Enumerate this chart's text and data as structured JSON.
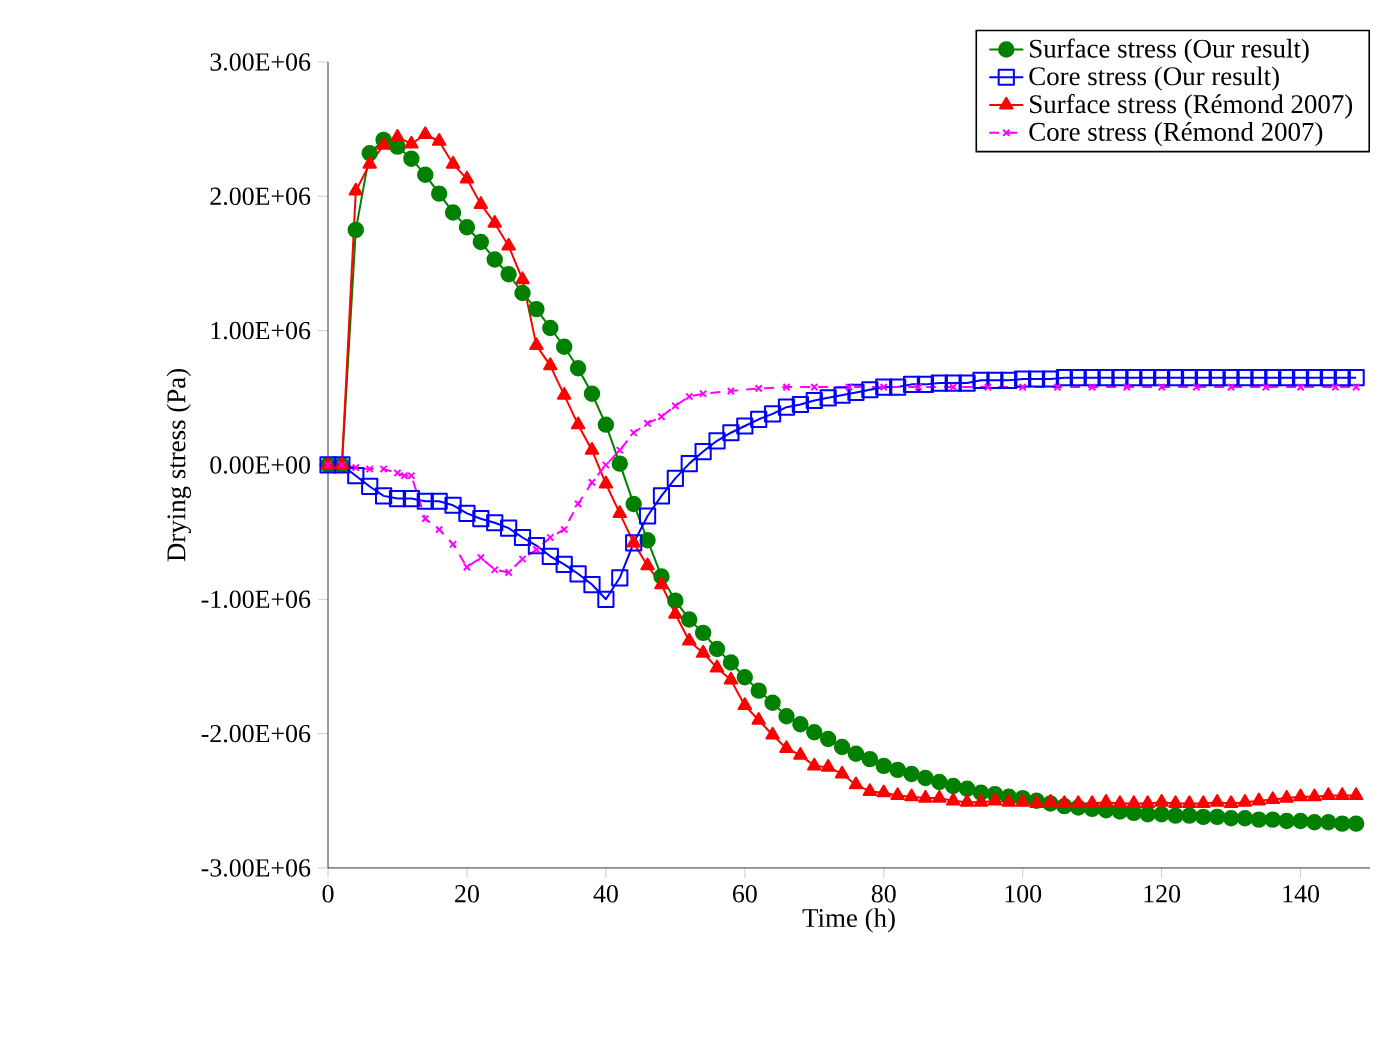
{
  "chart_data": {
    "type": "line",
    "xlabel": "Time (h)",
    "ylabel": "Drying stress (Pa)",
    "xlim": [
      0,
      150
    ],
    "xticks": [
      0,
      20,
      40,
      60,
      80,
      100,
      120,
      140
    ],
    "ylim": [
      -3000000,
      3000000
    ],
    "yticks": [
      {
        "value": -3000000,
        "label": "-3.00E+06"
      },
      {
        "value": -2000000,
        "label": "-2.00E+06"
      },
      {
        "value": -1000000,
        "label": "-1.00E+06"
      },
      {
        "value": 0,
        "label": "0.00E+00"
      },
      {
        "value": 1000000,
        "label": "1.00E+06"
      },
      {
        "value": 2000000,
        "label": "2.00E+06"
      },
      {
        "value": 3000000,
        "label": "3.00E+06"
      }
    ],
    "grid": false,
    "legend": "top right",
    "x": [
      0,
      2,
      4,
      6,
      8,
      10,
      12,
      14,
      16,
      18,
      20,
      22,
      24,
      26,
      28,
      30,
      32,
      34,
      36,
      38,
      40,
      42,
      44,
      46,
      48,
      50,
      52,
      54,
      56,
      58,
      60,
      62,
      64,
      66,
      68,
      70,
      72,
      74,
      76,
      78,
      80,
      82,
      84,
      86,
      88,
      90,
      92,
      94,
      96,
      98,
      100,
      102,
      104,
      106,
      108,
      110,
      112,
      114,
      116,
      118,
      120,
      122,
      124,
      126,
      128,
      130,
      132,
      134,
      136,
      138,
      140,
      142,
      144,
      146,
      148
    ],
    "series": [
      {
        "name": "Surface stress (Our result)",
        "color": "#008000",
        "marker": "circle",
        "line_style": "solid",
        "values": [
          0,
          0,
          1750000,
          2320000,
          2420000,
          2370000,
          2280000,
          2160000,
          2020000,
          1880000,
          1770000,
          1660000,
          1530000,
          1420000,
          1280000,
          1160000,
          1020000,
          880000,
          720000,
          530000,
          300000,
          10000,
          -290000,
          -560000,
          -830000,
          -1010000,
          -1150000,
          -1250000,
          -1370000,
          -1470000,
          -1580000,
          -1680000,
          -1770000,
          -1870000,
          -1930000,
          -1990000,
          -2040000,
          -2100000,
          -2150000,
          -2190000,
          -2240000,
          -2270000,
          -2300000,
          -2330000,
          -2360000,
          -2390000,
          -2410000,
          -2440000,
          -2450000,
          -2470000,
          -2480000,
          -2500000,
          -2520000,
          -2540000,
          -2550000,
          -2560000,
          -2570000,
          -2580000,
          -2590000,
          -2600000,
          -2600000,
          -2610000,
          -2610000,
          -2620000,
          -2620000,
          -2630000,
          -2630000,
          -2640000,
          -2640000,
          -2650000,
          -2650000,
          -2660000,
          -2660000,
          -2670000,
          -2670000
        ]
      },
      {
        "name": "Core stress (Our result)",
        "color": "#0000ff",
        "marker": "square",
        "line_style": "solid",
        "values": [
          0,
          0,
          -80000,
          -160000,
          -230000,
          -250000,
          -250000,
          -270000,
          -270000,
          -300000,
          -360000,
          -400000,
          -430000,
          -470000,
          -540000,
          -600000,
          -680000,
          -740000,
          -810000,
          -890000,
          -1000000,
          -840000,
          -580000,
          -380000,
          -230000,
          -100000,
          10000,
          100000,
          180000,
          240000,
          290000,
          340000,
          380000,
          430000,
          450000,
          480000,
          500000,
          520000,
          540000,
          560000,
          580000,
          580000,
          600000,
          600000,
          610000,
          610000,
          610000,
          630000,
          630000,
          630000,
          640000,
          640000,
          640000,
          650000,
          650000,
          650000,
          650000,
          650000,
          650000,
          650000,
          650000,
          650000,
          650000,
          650000,
          650000,
          650000,
          650000,
          650000,
          650000,
          650000,
          650000,
          650000,
          650000,
          650000,
          650000
        ]
      },
      {
        "name": "Surface stress (Rémond 2007)",
        "color": "#ff0000",
        "marker": "triangle",
        "line_style": "solid",
        "values": [
          0,
          0,
          2040000,
          2240000,
          2380000,
          2440000,
          2390000,
          2460000,
          2410000,
          2240000,
          2130000,
          1940000,
          1800000,
          1630000,
          1380000,
          890000,
          740000,
          520000,
          300000,
          110000,
          -140000,
          -360000,
          -580000,
          -750000,
          -890000,
          -1110000,
          -1310000,
          -1400000,
          -1510000,
          -1600000,
          -1790000,
          -1900000,
          -2010000,
          -2110000,
          -2160000,
          -2240000,
          -2250000,
          -2300000,
          -2380000,
          -2430000,
          -2440000,
          -2460000,
          -2470000,
          -2480000,
          -2480000,
          -2500000,
          -2510000,
          -2510000,
          -2500000,
          -2510000,
          -2510000,
          -2520000,
          -2510000,
          -2520000,
          -2520000,
          -2520000,
          -2510000,
          -2520000,
          -2520000,
          -2520000,
          -2510000,
          -2520000,
          -2520000,
          -2520000,
          -2510000,
          -2520000,
          -2510000,
          -2500000,
          -2490000,
          -2480000,
          -2470000,
          -2470000,
          -2460000,
          -2460000,
          -2460000
        ]
      },
      {
        "name": "Core stress (Rémond 2007)",
        "color": "#ff00ff",
        "marker": "cross",
        "line_style": "dashed",
        "x": [
          0,
          2,
          4,
          6,
          8,
          10,
          11,
          12,
          14,
          16,
          18,
          20,
          22,
          24,
          26,
          28,
          30,
          32,
          34,
          36,
          38,
          40,
          42,
          44,
          46,
          48,
          50,
          52,
          54,
          58,
          62,
          66,
          70,
          75,
          80,
          85,
          90,
          95,
          100,
          105,
          110,
          115,
          120,
          125,
          130,
          135,
          140,
          145,
          148
        ],
        "values": [
          0,
          0,
          -20000,
          -30000,
          -30000,
          -60000,
          -80000,
          -80000,
          -400000,
          -480000,
          -590000,
          -760000,
          -690000,
          -780000,
          -800000,
          -700000,
          -630000,
          -540000,
          -480000,
          -290000,
          -130000,
          0,
          110000,
          240000,
          310000,
          360000,
          440000,
          510000,
          530000,
          550000,
          570000,
          580000,
          580000,
          580000,
          580000,
          580000,
          580000,
          580000,
          580000,
          580000,
          580000,
          580000,
          580000,
          580000,
          580000,
          580000,
          580000,
          580000,
          580000
        ]
      }
    ]
  }
}
